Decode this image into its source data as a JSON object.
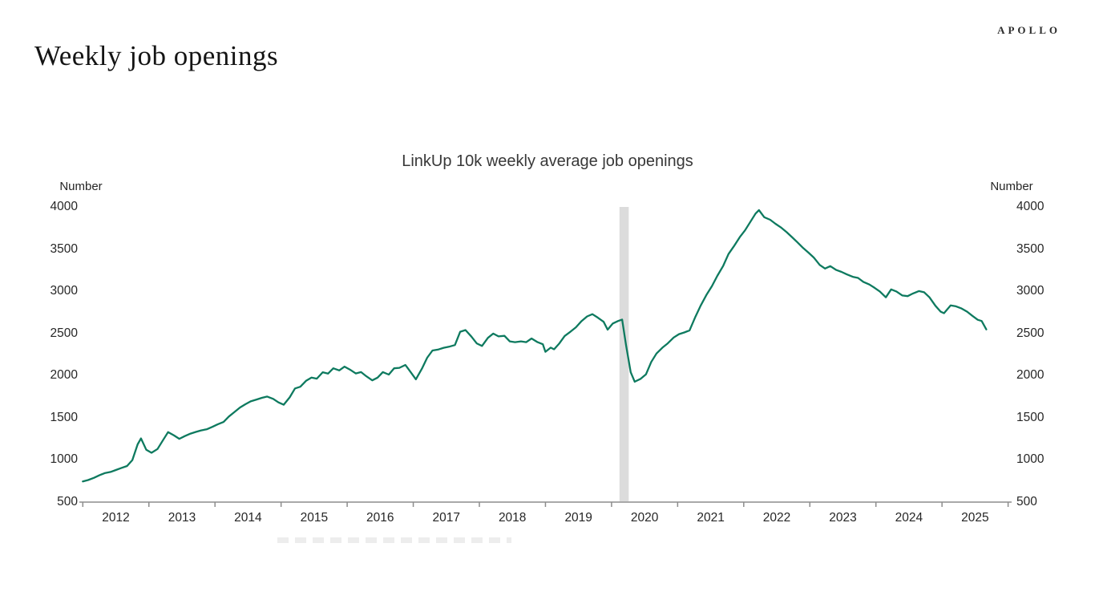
{
  "header": {
    "title": "Weekly job openings",
    "logo": "APOLLO"
  },
  "chart_data": {
    "type": "line",
    "title": "LinkUp 10k weekly average job openings",
    "unit_label_left": "Number",
    "unit_label_right": "Number",
    "ylabel": "Number",
    "ylim": [
      500,
      4000
    ],
    "y_ticks": [
      500,
      1000,
      1500,
      2000,
      2500,
      3000,
      3500,
      4000
    ],
    "x_ticks": [
      "2012",
      "2013",
      "2014",
      "2015",
      "2016",
      "2017",
      "2018",
      "2019",
      "2020",
      "2021",
      "2022",
      "2023",
      "2024",
      "2025"
    ],
    "grid": false,
    "legend": "none",
    "line_color": "#0e7a5f",
    "axis_color": "#9d9d9d",
    "tick_color": "#8c8c8c",
    "label_color": "#262626",
    "recession_band": {
      "start_year": 2020.12,
      "end_year": 2020.26,
      "color": "#dcdcdc"
    },
    "series": [
      {
        "name": "LinkUp 10k weekly average job openings",
        "points": [
          [
            2012.0,
            745
          ],
          [
            2012.08,
            762
          ],
          [
            2012.17,
            788
          ],
          [
            2012.25,
            818
          ],
          [
            2012.33,
            843
          ],
          [
            2012.42,
            858
          ],
          [
            2012.5,
            880
          ],
          [
            2012.58,
            903
          ],
          [
            2012.67,
            928
          ],
          [
            2012.75,
            998
          ],
          [
            2012.83,
            1185
          ],
          [
            2012.88,
            1255
          ],
          [
            2012.96,
            1120
          ],
          [
            2013.04,
            1085
          ],
          [
            2013.13,
            1130
          ],
          [
            2013.21,
            1230
          ],
          [
            2013.29,
            1330
          ],
          [
            2013.38,
            1290
          ],
          [
            2013.46,
            1250
          ],
          [
            2013.54,
            1282
          ],
          [
            2013.63,
            1312
          ],
          [
            2013.71,
            1332
          ],
          [
            2013.79,
            1350
          ],
          [
            2013.88,
            1365
          ],
          [
            2013.96,
            1392
          ],
          [
            2014.04,
            1422
          ],
          [
            2014.13,
            1450
          ],
          [
            2014.21,
            1515
          ],
          [
            2014.29,
            1565
          ],
          [
            2014.38,
            1622
          ],
          [
            2014.46,
            1660
          ],
          [
            2014.54,
            1695
          ],
          [
            2014.63,
            1716
          ],
          [
            2014.71,
            1736
          ],
          [
            2014.79,
            1752
          ],
          [
            2014.88,
            1724
          ],
          [
            2014.96,
            1682
          ],
          [
            2015.04,
            1655
          ],
          [
            2015.13,
            1742
          ],
          [
            2015.21,
            1848
          ],
          [
            2015.29,
            1868
          ],
          [
            2015.38,
            1940
          ],
          [
            2015.46,
            1976
          ],
          [
            2015.54,
            1964
          ],
          [
            2015.63,
            2040
          ],
          [
            2015.71,
            2024
          ],
          [
            2015.79,
            2086
          ],
          [
            2015.88,
            2062
          ],
          [
            2015.96,
            2106
          ],
          [
            2016.04,
            2072
          ],
          [
            2016.13,
            2026
          ],
          [
            2016.21,
            2042
          ],
          [
            2016.29,
            1992
          ],
          [
            2016.38,
            1944
          ],
          [
            2016.46,
            1976
          ],
          [
            2016.54,
            2042
          ],
          [
            2016.63,
            2012
          ],
          [
            2016.71,
            2086
          ],
          [
            2016.79,
            2092
          ],
          [
            2016.88,
            2126
          ],
          [
            2016.96,
            2042
          ],
          [
            2017.04,
            1956
          ],
          [
            2017.13,
            2082
          ],
          [
            2017.21,
            2212
          ],
          [
            2017.29,
            2298
          ],
          [
            2017.38,
            2310
          ],
          [
            2017.46,
            2330
          ],
          [
            2017.54,
            2342
          ],
          [
            2017.63,
            2362
          ],
          [
            2017.71,
            2520
          ],
          [
            2017.79,
            2540
          ],
          [
            2017.88,
            2462
          ],
          [
            2017.96,
            2382
          ],
          [
            2018.04,
            2352
          ],
          [
            2018.13,
            2448
          ],
          [
            2018.21,
            2498
          ],
          [
            2018.29,
            2465
          ],
          [
            2018.38,
            2472
          ],
          [
            2018.46,
            2406
          ],
          [
            2018.54,
            2396
          ],
          [
            2018.63,
            2406
          ],
          [
            2018.71,
            2396
          ],
          [
            2018.79,
            2440
          ],
          [
            2018.88,
            2396
          ],
          [
            2018.96,
            2372
          ],
          [
            2019.0,
            2282
          ],
          [
            2019.08,
            2332
          ],
          [
            2019.13,
            2312
          ],
          [
            2019.21,
            2382
          ],
          [
            2019.29,
            2470
          ],
          [
            2019.38,
            2522
          ],
          [
            2019.46,
            2572
          ],
          [
            2019.54,
            2642
          ],
          [
            2019.63,
            2702
          ],
          [
            2019.71,
            2728
          ],
          [
            2019.79,
            2688
          ],
          [
            2019.88,
            2638
          ],
          [
            2019.94,
            2545
          ],
          [
            2020.02,
            2618
          ],
          [
            2020.1,
            2648
          ],
          [
            2020.16,
            2665
          ],
          [
            2020.22,
            2360
          ],
          [
            2020.29,
            2040
          ],
          [
            2020.35,
            1928
          ],
          [
            2020.44,
            1962
          ],
          [
            2020.52,
            2014
          ],
          [
            2020.6,
            2162
          ],
          [
            2020.68,
            2262
          ],
          [
            2020.77,
            2332
          ],
          [
            2020.85,
            2382
          ],
          [
            2020.94,
            2452
          ],
          [
            2021.02,
            2492
          ],
          [
            2021.1,
            2512
          ],
          [
            2021.18,
            2536
          ],
          [
            2021.27,
            2700
          ],
          [
            2021.35,
            2832
          ],
          [
            2021.44,
            2962
          ],
          [
            2021.52,
            3062
          ],
          [
            2021.6,
            3182
          ],
          [
            2021.69,
            3302
          ],
          [
            2021.77,
            3442
          ],
          [
            2021.85,
            3532
          ],
          [
            2021.94,
            3642
          ],
          [
            2022.02,
            3722
          ],
          [
            2022.1,
            3822
          ],
          [
            2022.18,
            3922
          ],
          [
            2022.23,
            3962
          ],
          [
            2022.31,
            3878
          ],
          [
            2022.4,
            3848
          ],
          [
            2022.48,
            3800
          ],
          [
            2022.56,
            3758
          ],
          [
            2022.65,
            3700
          ],
          [
            2022.73,
            3642
          ],
          [
            2022.81,
            3582
          ],
          [
            2022.9,
            3512
          ],
          [
            2022.98,
            3458
          ],
          [
            2023.06,
            3400
          ],
          [
            2023.15,
            3312
          ],
          [
            2023.23,
            3270
          ],
          [
            2023.31,
            3298
          ],
          [
            2023.4,
            3252
          ],
          [
            2023.48,
            3230
          ],
          [
            2023.56,
            3200
          ],
          [
            2023.65,
            3172
          ],
          [
            2023.73,
            3158
          ],
          [
            2023.81,
            3112
          ],
          [
            2023.9,
            3080
          ],
          [
            2023.98,
            3040
          ],
          [
            2024.06,
            2998
          ],
          [
            2024.15,
            2928
          ],
          [
            2024.23,
            3022
          ],
          [
            2024.31,
            2998
          ],
          [
            2024.4,
            2950
          ],
          [
            2024.48,
            2942
          ],
          [
            2024.56,
            2974
          ],
          [
            2024.65,
            3002
          ],
          [
            2024.73,
            2988
          ],
          [
            2024.81,
            2928
          ],
          [
            2024.9,
            2828
          ],
          [
            2024.98,
            2758
          ],
          [
            2025.03,
            2740
          ],
          [
            2025.13,
            2832
          ],
          [
            2025.21,
            2822
          ],
          [
            2025.29,
            2798
          ],
          [
            2025.38,
            2758
          ],
          [
            2025.46,
            2708
          ],
          [
            2025.54,
            2662
          ],
          [
            2025.6,
            2648
          ],
          [
            2025.67,
            2548
          ]
        ]
      }
    ]
  }
}
